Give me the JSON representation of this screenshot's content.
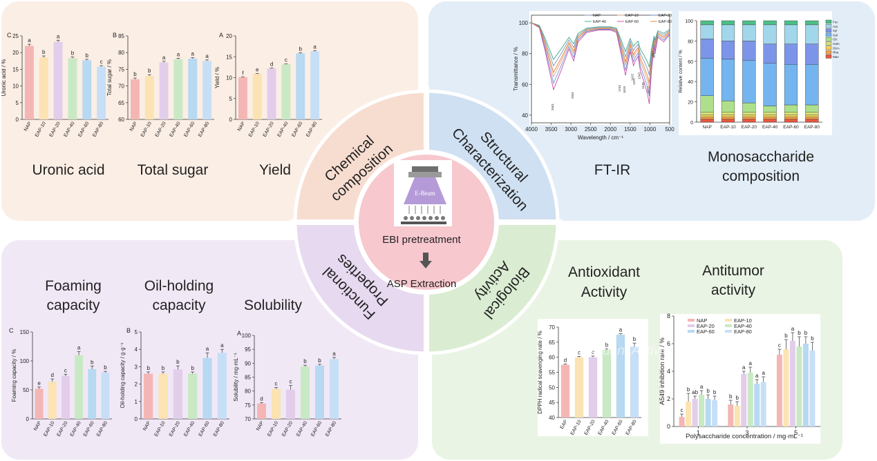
{
  "center": {
    "label_main": "EBI pretreatment",
    "label_sub": "ASP Extraction",
    "device_label": "E-Beam"
  },
  "ring_labels": {
    "chemical": [
      "Chemical",
      "composition"
    ],
    "structural": [
      "Structural",
      "Characterization"
    ],
    "functional": [
      "Functional",
      "Properties"
    ],
    "biological": [
      "Biological",
      "Activity"
    ]
  },
  "captions": {
    "uronic": "Uronic acid",
    "sugar": "Total sugar",
    "yield": "Yield",
    "ftir": "FT-IR",
    "mono": [
      "Monosaccharide",
      "composition"
    ],
    "foaming": [
      "Foaming",
      "capacity"
    ],
    "oil": [
      "Oil-holding",
      "capacity"
    ],
    "solubility": "Solubility",
    "antioxidant": [
      "Antioxidant",
      "Activity"
    ],
    "antitumor": [
      "Antitumor",
      "activity"
    ],
    "watermark": "Antioxidant Activity"
  },
  "colors": {
    "chem_bg": "#fbeee5",
    "struct_bg": "#e3edf7",
    "func_bg": "#f1e8f6",
    "bio_bg": "#eaf4e4",
    "ring_chem": "#f7ddd0",
    "ring_struct": "#cfe0f2",
    "ring_func": "#e7d9f0",
    "ring_bio": "#daedd2",
    "center": "#f7c8ce",
    "bars": [
      "#f4b6b4",
      "#fbe3b3",
      "#e2cdea",
      "#c9e9c4",
      "#b7d9f2",
      "#c7dff6"
    ]
  },
  "chart_data": [
    {
      "id": "uronic",
      "panel": "C",
      "type": "bar",
      "categories": [
        "NAP",
        "EAP-10",
        "EAP-20",
        "EAP-40",
        "EAP-60",
        "EAP-80"
      ],
      "values": [
        22,
        18.5,
        23.2,
        18.3,
        17.7,
        15.8
      ],
      "errors": [
        0.5,
        0.5,
        0.5,
        0.4,
        0.3,
        0.3
      ],
      "letters": [
        "a",
        "b",
        "a",
        "b",
        "b",
        "c"
      ],
      "ylabel": "Uronic acid / %",
      "ylim": [
        0,
        25
      ],
      "ticks": [
        0,
        5,
        10,
        15,
        20,
        25
      ]
    },
    {
      "id": "sugar",
      "panel": "B",
      "type": "bar",
      "categories": [
        "NAP",
        "EAP-10",
        "EAP-20",
        "EAP-40",
        "EAP-60",
        "EAP-80"
      ],
      "values": [
        72,
        73,
        77,
        78,
        78.2,
        77.5
      ],
      "errors": [
        0.4,
        0.4,
        0.4,
        0.3,
        0.3,
        0.3
      ],
      "letters": [
        "b",
        "b",
        "a",
        "a",
        "a",
        "a"
      ],
      "ylabel": "Total sugar / %",
      "ylim": [
        60,
        85
      ],
      "ticks": [
        60,
        65,
        70,
        75,
        80,
        85
      ]
    },
    {
      "id": "yield",
      "panel": "A",
      "type": "bar",
      "categories": [
        "NAP",
        "EAP-10",
        "EAP-20",
        "EAP-40",
        "EAP-60",
        "EAP-80"
      ],
      "values": [
        10.1,
        10.9,
        12.2,
        13.2,
        15.8,
        16.3
      ],
      "errors": [
        0.1,
        0.1,
        0.1,
        0.1,
        0.15,
        0.15
      ],
      "letters": [
        "f",
        "e",
        "d",
        "c",
        "b",
        "a"
      ],
      "ylabel": "Yield / %",
      "ylim": [
        0,
        20
      ],
      "ticks": [
        0,
        5,
        10,
        15,
        20
      ]
    },
    {
      "id": "foaming",
      "panel": "C",
      "type": "bar",
      "categories": [
        "NAP",
        "EAP-10",
        "EAP-20",
        "EAP-40",
        "EAP-60",
        "EAP-80"
      ],
      "values": [
        52,
        64,
        74,
        110,
        86,
        80
      ],
      "errors": [
        3,
        5,
        3,
        6,
        5,
        2
      ],
      "letters": [
        "e",
        "d",
        "c",
        "a",
        "b",
        "b"
      ],
      "ylabel": "Foaming capacity / %",
      "ylim": [
        0,
        150
      ],
      "ticks": [
        0,
        50,
        100,
        150
      ]
    },
    {
      "id": "oil",
      "panel": "B",
      "type": "bar",
      "categories": [
        "NAP",
        "EAP-10",
        "EAP-20",
        "EAP-40",
        "EAP-60",
        "EAP-80"
      ],
      "values": [
        2.6,
        2.6,
        2.85,
        2.6,
        3.5,
        3.8
      ],
      "errors": [
        0.1,
        0.1,
        0.2,
        0.1,
        0.3,
        0.2
      ],
      "letters": [
        "b",
        "b",
        "b",
        "b",
        "a",
        "a"
      ],
      "ylabel": "Oil-holding capacity / g·g⁻¹",
      "ylim": [
        0,
        5
      ],
      "ticks": [
        0,
        1,
        2,
        3,
        4,
        5
      ]
    },
    {
      "id": "solubility",
      "panel": "A",
      "type": "bar",
      "categories": [
        "NAP",
        "EAP-10",
        "EAP-20",
        "EAP-40",
        "EAP-60",
        "EAP-80"
      ],
      "values": [
        75.5,
        80.8,
        80.5,
        88.8,
        89.2,
        91.5
      ],
      "errors": [
        0.3,
        0.5,
        1.5,
        0.5,
        0.4,
        0.6
      ],
      "letters": [
        "d",
        "c",
        "c",
        "b",
        "b",
        "a"
      ],
      "ylabel": "Solubility / mg·mL⁻¹",
      "ylim": [
        70,
        100
      ],
      "ticks": [
        70,
        75,
        80,
        85,
        90,
        95,
        100
      ]
    },
    {
      "id": "dpph",
      "panel": "",
      "type": "bar",
      "categories": [
        "EAP",
        "EAP-10",
        "EAP-20",
        "EAP-40",
        "EAP-60",
        "EAP-80"
      ],
      "values": [
        57.5,
        60,
        60,
        62.5,
        67.5,
        63.5
      ],
      "errors": [
        0.3,
        0.3,
        0.4,
        0.3,
        0.3,
        1.2
      ],
      "letters": [
        "d",
        "c",
        "c",
        "b",
        "a",
        "b"
      ],
      "ylabel": "DPPH radical scavenging rate / %",
      "ylim": [
        40,
        70
      ],
      "ticks": [
        40,
        45,
        50,
        55,
        60,
        65,
        70
      ]
    },
    {
      "id": "antitumor",
      "panel": "",
      "type": "bar",
      "categories": [
        "1",
        "3",
        "5"
      ],
      "series": [
        {
          "name": "NAP",
          "values": [
            0.7,
            1.6,
            5.2
          ],
          "errors": [
            0.2,
            0.3,
            0.4
          ],
          "letters": [
            "c",
            "b",
            "c"
          ]
        },
        {
          "name": "EAP-10",
          "values": [
            1.8,
            1.5,
            5.6
          ],
          "errors": [
            0.6,
            0.3,
            0.7
          ],
          "letters": [
            "b",
            "b",
            "b"
          ]
        },
        {
          "name": "EAP-20",
          "values": [
            2.0,
            3.8,
            6.2
          ],
          "errors": [
            0.2,
            0.2,
            0.6
          ],
          "letters": [
            "ab",
            "a",
            "a"
          ]
        },
        {
          "name": "EAP-40",
          "values": [
            2.3,
            3.9,
            5.8
          ],
          "errors": [
            0.3,
            0.4,
            0.7
          ],
          "letters": [
            "a",
            "a",
            "b"
          ]
        },
        {
          "name": "EAP-60",
          "values": [
            2.0,
            3.1,
            6.0
          ],
          "errors": [
            0.3,
            0.3,
            0.5
          ],
          "letters": [
            "b",
            "a",
            "b"
          ]
        },
        {
          "name": "EAP-80",
          "values": [
            1.9,
            3.2,
            5.5
          ],
          "errors": [
            0.3,
            0.4,
            0.6
          ],
          "letters": [
            "b",
            "a",
            "b"
          ]
        }
      ],
      "ylabel": "A549 inhibition rate / %",
      "xlabel": "Polysaccharide concentration / mg·mL⁻¹",
      "ylim": [
        0,
        8
      ],
      "ticks": [
        0,
        2,
        4,
        6,
        8
      ]
    },
    {
      "id": "ftir",
      "type": "line",
      "series_names": [
        "NAP",
        "EAP-10",
        "EAP-20",
        "EAP-40",
        "EAP-60",
        "EAP-80"
      ],
      "series_colors": [
        "#7f8fb3",
        "#e8a07a",
        "#6a8fd8",
        "#3aa68c",
        "#c44ca8",
        "#e0823a"
      ],
      "xlabel": "Wavelength / cm⁻¹",
      "ylabel": "Transmittance / %",
      "xlim": [
        4000,
        500
      ],
      "ylim": [
        35,
        105
      ],
      "xticks": [
        4000,
        3500,
        3000,
        2500,
        2000,
        1500,
        1000,
        500
      ],
      "yticks": [
        40,
        60,
        80,
        100
      ],
      "peaks": [
        "3441",
        "2931",
        "1742",
        "1619",
        "1415",
        "1371",
        "1243",
        "1146",
        "1017",
        "893",
        "871"
      ]
    },
    {
      "id": "mono",
      "type": "bar",
      "categories": [
        "NAP",
        "EAP-10",
        "EAP-20",
        "EAP-40",
        "EAP-60",
        "EAP-80"
      ],
      "ylabel": "Relative content / %",
      "ylim": [
        0,
        100
      ],
      "ticks": [
        0,
        20,
        40,
        60,
        80,
        100
      ],
      "components": [
        "Man",
        "Rha",
        "GlcA",
        "GalA",
        "Glc",
        "Gal",
        "Xyl",
        "Ara",
        "Fuc"
      ],
      "component_colors": [
        "#e9573f",
        "#f2a24b",
        "#f6d05a",
        "#d2e27a",
        "#aee08b",
        "#74b5f0",
        "#7d95e8",
        "#a2d6ea",
        "#4dbf86"
      ],
      "stacks": [
        [
          3,
          2,
          2,
          3,
          16,
          37,
          19,
          14,
          4
        ],
        [
          3,
          2,
          2,
          3,
          11,
          41,
          18,
          16,
          4
        ],
        [
          3,
          2,
          2,
          3,
          9,
          42,
          19,
          16,
          4
        ],
        [
          3,
          2,
          2,
          3,
          6,
          42,
          19,
          19,
          4
        ],
        [
          3,
          2,
          2,
          3,
          7,
          40,
          20,
          19,
          4
        ],
        [
          3,
          2,
          2,
          3,
          7,
          40,
          20,
          19,
          4
        ]
      ]
    }
  ]
}
